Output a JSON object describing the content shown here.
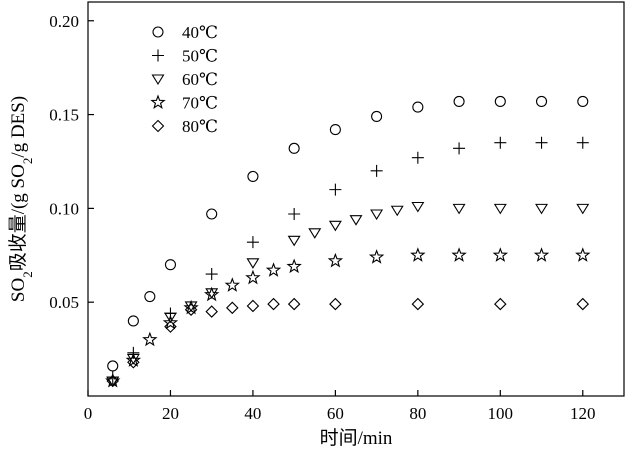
{
  "chart_data": {
    "type": "scatter",
    "title": "",
    "xlabel": "时间/min",
    "ylabel_parts": [
      "SO",
      "2",
      "吸收量/(g SO",
      "2",
      "/g DES)"
    ],
    "xlim": [
      0,
      130
    ],
    "ylim": [
      0,
      0.21
    ],
    "x_ticks": [
      0,
      20,
      40,
      60,
      80,
      100,
      120
    ],
    "x_tick_labels": [
      "0",
      "20",
      "40",
      "60",
      "80",
      "100",
      "120"
    ],
    "y_ticks": [
      0.05,
      0.1,
      0.15,
      0.2
    ],
    "y_tick_labels": [
      "0.05",
      "0.10",
      "0.15",
      "0.20"
    ],
    "grid": false,
    "legend_position": "top-left",
    "series": [
      {
        "name": "40℃",
        "marker": "circle",
        "x": [
          6,
          11,
          15,
          20,
          30,
          40,
          50,
          60,
          70,
          80,
          90,
          100,
          110,
          120
        ],
        "y": [
          0.016,
          0.04,
          0.053,
          0.07,
          0.097,
          0.117,
          0.132,
          0.142,
          0.149,
          0.154,
          0.157,
          0.157,
          0.157,
          0.157
        ]
      },
      {
        "name": "50℃",
        "marker": "plus",
        "x": [
          6,
          11,
          20,
          30,
          40,
          50,
          60,
          70,
          80,
          90,
          100,
          110,
          120
        ],
        "y": [
          0.01,
          0.023,
          0.044,
          0.065,
          0.082,
          0.097,
          0.11,
          0.12,
          0.127,
          0.132,
          0.135,
          0.135,
          0.135
        ]
      },
      {
        "name": "60℃",
        "marker": "triangle-down",
        "x": [
          6,
          11,
          20,
          25,
          30,
          40,
          50,
          55,
          60,
          65,
          70,
          75,
          80,
          90,
          100,
          110,
          120
        ],
        "y": [
          0.008,
          0.02,
          0.042,
          0.048,
          0.055,
          0.071,
          0.083,
          0.087,
          0.091,
          0.094,
          0.097,
          0.099,
          0.101,
          0.1,
          0.1,
          0.1,
          0.1
        ]
      },
      {
        "name": "70℃",
        "marker": "star",
        "x": [
          6,
          11,
          15,
          20,
          25,
          30,
          35,
          40,
          45,
          50,
          60,
          70,
          80,
          90,
          100,
          110,
          120
        ],
        "y": [
          0.008,
          0.019,
          0.03,
          0.039,
          0.047,
          0.054,
          0.059,
          0.063,
          0.067,
          0.069,
          0.072,
          0.074,
          0.075,
          0.075,
          0.075,
          0.075,
          0.075
        ]
      },
      {
        "name": "80℃",
        "marker": "diamond",
        "x": [
          6,
          11,
          20,
          25,
          30,
          35,
          40,
          45,
          50,
          60,
          80,
          100,
          120
        ],
        "y": [
          0.008,
          0.018,
          0.037,
          0.046,
          0.045,
          0.047,
          0.048,
          0.049,
          0.049,
          0.049,
          0.049,
          0.049,
          0.049
        ]
      }
    ]
  }
}
